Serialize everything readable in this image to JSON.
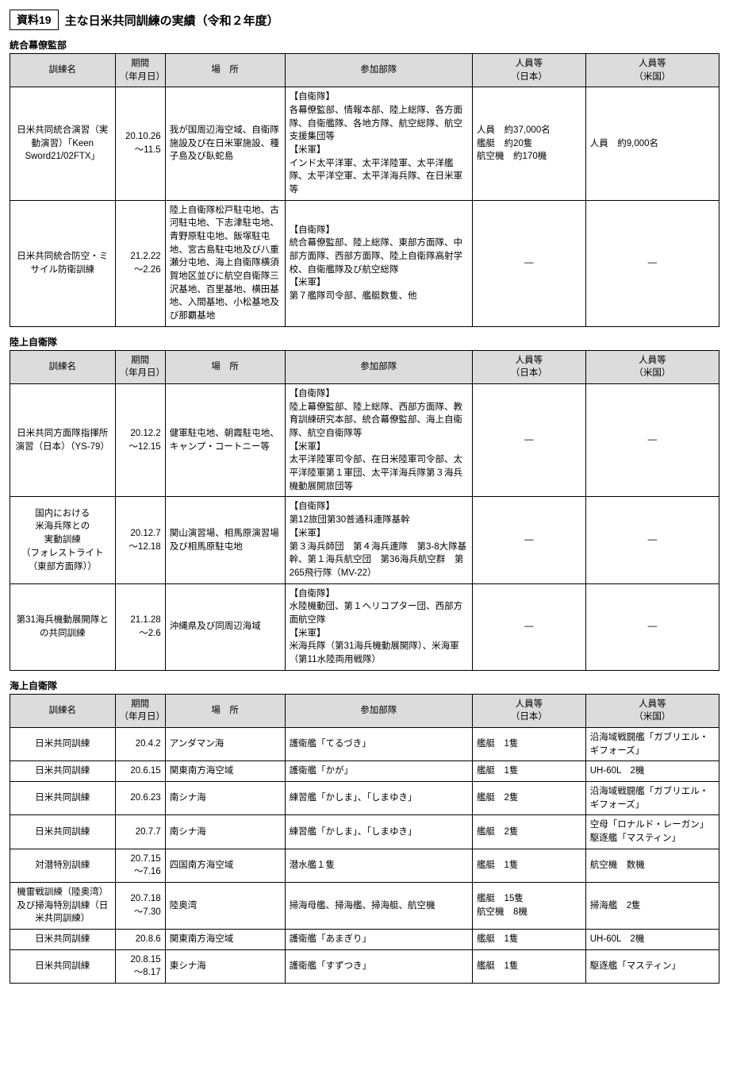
{
  "header": {
    "box": "資料19",
    "title": "主な日米共同訓練の実績（令和２年度）"
  },
  "cols": {
    "name": "訓練名",
    "period": "期間\n（年月日）",
    "place": "場　所",
    "units": "参加部隊",
    "jp": "人員等\n（日本）",
    "us": "人員等\n（米国）"
  },
  "sec1": {
    "label": "統合幕僚監部",
    "r1": {
      "name": "日米共同統合演習（実動演習）「Keen Sword21/02FTX」",
      "period": "20.10.26\n～11.5",
      "place": "我が国周辺海空域、自衛隊施設及び在日米軍施設、種子島及び臥蛇島",
      "units": "【自衛隊】\n各幕僚監部、情報本部、陸上総隊、各方面隊、自衛艦隊、各地方隊、航空総隊、航空支援集団等\n【米軍】\nインド太平洋軍、太平洋陸軍、太平洋艦隊、太平洋空軍、太平洋海兵隊、在日米軍等",
      "jp": "人員　約37,000名\n艦艇　約20隻\n航空機　約170機",
      "us": "人員　約9,000名"
    },
    "r2": {
      "name": "日米共同統合防空・ミサイル防衛訓練",
      "period": "21.2.22\n～2.26",
      "place": "陸上自衛隊松戸駐屯地、古河駐屯地、下志津駐屯地、青野原駐屯地、飯塚駐屯地、宮古島駐屯地及び八重瀬分屯地、海上自衛隊横須賀地区並びに航空自衛隊三沢基地、百里基地、横田基地、入間基地、小松基地及び那覇基地",
      "units": "【自衛隊】\n統合幕僚監部、陸上総隊、東部方面隊、中部方面隊、西部方面隊、陸上自衛隊高射学校、自衛艦隊及び航空総隊\n【米軍】\n第７艦隊司令部、艦艇数隻、他",
      "jp": "―",
      "us": "―"
    }
  },
  "sec2": {
    "label": "陸上自衛隊",
    "r1": {
      "name": "日米共同方面隊指揮所演習（日本）（YS-79）",
      "period": "20.12.2\n～12.15",
      "place": "健軍駐屯地、朝霞駐屯地、キャンプ・コートニー等",
      "units": "【自衛隊】\n陸上幕僚監部、陸上総隊、西部方面隊、教育訓練研究本部、統合幕僚監部、海上自衛隊、航空自衛隊等\n【米軍】\n太平洋陸軍司令部、在日米陸軍司令部、太平洋陸軍第１軍団、太平洋海兵隊第３海兵機動展開旅団等",
      "jp": "―",
      "us": "―"
    },
    "r2": {
      "name": "国内における\n米海兵隊との\n実動訓練\n（フォレストライト\n（東部方面隊））",
      "period": "20.12.7\n～12.18",
      "place": "関山演習場、相馬原演習場及び相馬原駐屯地",
      "units": "【自衛隊】\n第12旅団第30普通科連隊基幹\n【米軍】\n第３海兵師団　第４海兵連隊　第3-8大隊基幹、第１海兵航空団　第36海兵航空群　第265飛行隊（MV-22）",
      "jp": "―",
      "us": "―"
    },
    "r3": {
      "name": "第31海兵機動展開隊との共同訓練",
      "period": "21.1.28\n～2.6",
      "place": "沖縄県及び同周辺海域",
      "units": "【自衛隊】\n水陸機動団、第１ヘリコプター団、西部方面航空隊\n【米軍】\n米海兵隊（第31海兵機動展開隊）、米海軍（第11水陸両用戦隊）",
      "jp": "―",
      "us": "―"
    }
  },
  "sec3": {
    "label": "海上自衛隊",
    "r1": {
      "name": "日米共同訓練",
      "period": "20.4.2",
      "place": "アンダマン海",
      "units": "護衛艦「てるづき」",
      "jp": "艦艇　1隻",
      "us": "沿海域戦闘艦「ガブリエル・ギフォーズ」"
    },
    "r2": {
      "name": "日米共同訓練",
      "period": "20.6.15",
      "place": "関東南方海空域",
      "units": "護衛艦「かが」",
      "jp": "艦艇　1隻",
      "us": "UH-60L　2機"
    },
    "r3": {
      "name": "日米共同訓練",
      "period": "20.6.23",
      "place": "南シナ海",
      "units": "練習艦「かしま」、「しまゆき」",
      "jp": "艦艇　2隻",
      "us": "沿海域戦闘艦「ガブリエル・ギフォーズ」"
    },
    "r4": {
      "name": "日米共同訓練",
      "period": "20.7.7",
      "place": "南シナ海",
      "units": "練習艦「かしま」、「しまゆき」",
      "jp": "艦艇　2隻",
      "us": "空母「ロナルド・レーガン」\n駆逐艦「マスティン」"
    },
    "r5": {
      "name": "対潜特別訓練",
      "period": "20.7.15\n～7.16",
      "place": "四国南方海空域",
      "units": "潜水艦１隻",
      "jp": "艦艇　1隻",
      "us": "航空機　数機"
    },
    "r6": {
      "name": "機雷戦訓練（陸奥湾）及び掃海特別訓練（日米共同訓練）",
      "period": "20.7.18\n～7.30",
      "place": "陸奥湾",
      "units": "掃海母艦、掃海艦、掃海艇、航空機",
      "jp": "艦艇　15隻\n航空機　8機",
      "us": "掃海艦　2隻"
    },
    "r7": {
      "name": "日米共同訓練",
      "period": "20.8.6",
      "place": "関東南方海空域",
      "units": "護衛艦「あまぎり」",
      "jp": "艦艇　1隻",
      "us": "UH-60L　2機"
    },
    "r8": {
      "name": "日米共同訓練",
      "period": "20.8.15\n～8.17",
      "place": "東シナ海",
      "units": "護衛艦「すずつき」",
      "jp": "艦艇　1隻",
      "us": "駆逐艦「マスティン」"
    }
  }
}
